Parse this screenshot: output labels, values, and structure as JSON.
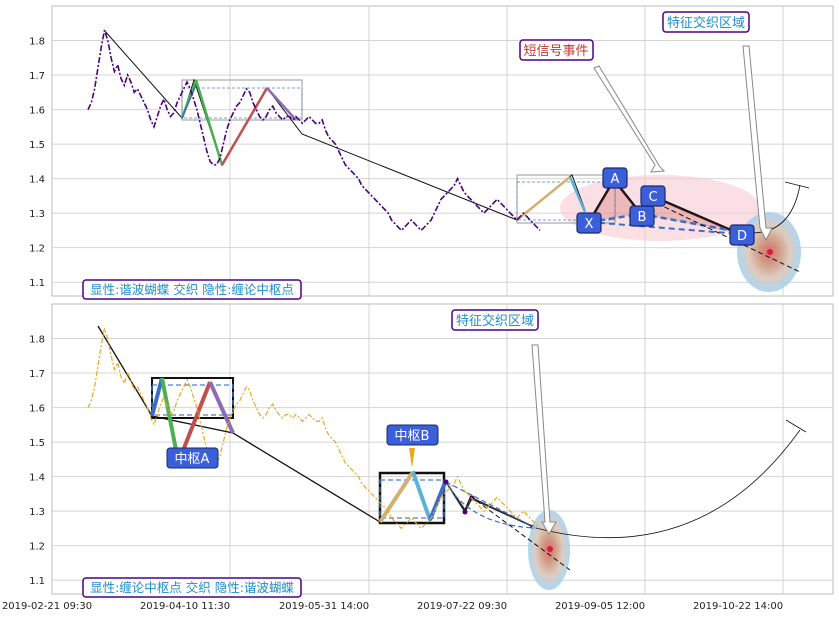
{
  "chart_data": [
    {
      "type": "line",
      "panel": "top",
      "ylim": [
        1.06,
        1.9
      ],
      "yticks": [
        1.1,
        1.2,
        1.3,
        1.4,
        1.5,
        1.6,
        1.7,
        1.8
      ],
      "ytick_labels": [
        "1.1",
        "1.2",
        "1.3",
        "1.4",
        "1.5",
        "1.6",
        "1.7",
        "1.8"
      ],
      "series_color": "#4b0082",
      "series": [
        {
          "values": [
            1.6,
            1.62,
            1.66,
            1.72,
            1.78,
            1.83,
            1.8,
            1.75,
            1.71,
            1.73,
            1.69,
            1.67,
            1.7,
            1.68,
            1.65,
            1.66,
            1.64,
            1.62,
            1.6,
            1.57,
            1.55,
            1.58,
            1.61,
            1.63,
            1.6,
            1.58,
            1.59,
            1.62,
            1.64,
            1.66,
            1.68,
            1.66,
            1.63,
            1.6,
            1.56,
            1.52,
            1.48,
            1.45,
            1.44,
            1.44,
            1.46,
            1.5,
            1.54,
            1.57,
            1.59,
            1.61,
            1.62,
            1.64,
            1.66,
            1.65,
            1.62,
            1.6,
            1.58,
            1.57,
            1.58,
            1.6,
            1.61,
            1.59,
            1.58,
            1.57,
            1.58,
            1.58,
            1.57,
            1.58,
            1.57,
            1.56,
            1.57,
            1.58,
            1.57,
            1.56,
            1.56,
            1.57,
            1.54,
            1.52,
            1.51,
            1.5,
            1.48,
            1.46,
            1.44,
            1.43,
            1.42,
            1.41,
            1.4,
            1.38,
            1.37,
            1.36,
            1.35,
            1.34,
            1.33,
            1.32,
            1.31,
            1.3,
            1.28,
            1.27,
            1.26,
            1.25,
            1.26,
            1.27,
            1.28,
            1.27,
            1.26,
            1.25,
            1.26,
            1.27,
            1.28,
            1.3,
            1.32,
            1.34,
            1.35,
            1.36,
            1.37,
            1.38,
            1.4,
            1.38,
            1.36,
            1.35,
            1.34,
            1.33,
            1.32,
            1.31,
            1.3,
            1.31,
            1.32,
            1.33,
            1.34,
            1.33,
            1.32,
            1.31,
            1.3,
            1.29,
            1.28,
            1.29,
            1.3,
            1.29,
            1.28,
            1.27,
            1.26,
            1.25
          ]
        }
      ],
      "annotations": {
        "legend_text": "显性:谐波蝴蝶 交织 隐性:缠论中枢点",
        "signal_label": "短信号事件",
        "zone_label": "特征交织区域",
        "pattern_points": [
          "X",
          "A",
          "B",
          "C",
          "D"
        ]
      }
    },
    {
      "type": "line",
      "panel": "bottom",
      "ylim": [
        1.06,
        1.9
      ],
      "yticks": [
        1.1,
        1.2,
        1.3,
        1.4,
        1.5,
        1.6,
        1.7,
        1.8
      ],
      "ytick_labels": [
        "1.1",
        "1.2",
        "1.3",
        "1.4",
        "1.5",
        "1.6",
        "1.7",
        "1.8"
      ],
      "series_color": "#e8a820",
      "series": [
        {
          "values": [
            1.6,
            1.62,
            1.66,
            1.72,
            1.78,
            1.83,
            1.8,
            1.75,
            1.71,
            1.73,
            1.69,
            1.67,
            1.7,
            1.68,
            1.65,
            1.66,
            1.64,
            1.62,
            1.6,
            1.57,
            1.55,
            1.58,
            1.61,
            1.63,
            1.6,
            1.58,
            1.59,
            1.62,
            1.64,
            1.66,
            1.68,
            1.66,
            1.63,
            1.6,
            1.56,
            1.52,
            1.48,
            1.45,
            1.44,
            1.44,
            1.46,
            1.5,
            1.54,
            1.57,
            1.59,
            1.61,
            1.62,
            1.64,
            1.66,
            1.65,
            1.62,
            1.6,
            1.58,
            1.57,
            1.58,
            1.6,
            1.61,
            1.59,
            1.58,
            1.57,
            1.58,
            1.58,
            1.57,
            1.58,
            1.57,
            1.56,
            1.57,
            1.58,
            1.57,
            1.56,
            1.56,
            1.57,
            1.54,
            1.52,
            1.51,
            1.5,
            1.48,
            1.46,
            1.44,
            1.43,
            1.42,
            1.41,
            1.4,
            1.38,
            1.37,
            1.36,
            1.35,
            1.34,
            1.33,
            1.32,
            1.31,
            1.3,
            1.28,
            1.27,
            1.26,
            1.25,
            1.26,
            1.27,
            1.28,
            1.27,
            1.26,
            1.25,
            1.26,
            1.27,
            1.28,
            1.3,
            1.32,
            1.34,
            1.35,
            1.36,
            1.37,
            1.38,
            1.4,
            1.38,
            1.36,
            1.35,
            1.34,
            1.33,
            1.32,
            1.31,
            1.3,
            1.31,
            1.32,
            1.33,
            1.34,
            1.33,
            1.32,
            1.31,
            1.3,
            1.29,
            1.28,
            1.29,
            1.3,
            1.29,
            1.28,
            1.27,
            1.26,
            1.25
          ]
        }
      ],
      "annotations": {
        "legend_text": "显性:缠论中枢点 交织 隐性:谐波蝴蝶",
        "zone_label": "特征交织区域",
        "hub_a_label": "中枢A",
        "hub_b_label": "中枢B"
      }
    }
  ],
  "x_axis": {
    "tick_labels": [
      "2019-02-21 09:30",
      "2019-04-10 11:30",
      "2019-05-31 14:00",
      "2019-07-22 09:30",
      "2019-09-05 12:00",
      "2019-10-22 14:00"
    ]
  },
  "colors": {
    "label_box_border": "#4b0082",
    "label_text_blue": "#1e90c8",
    "label_text_red": "#c0392b",
    "point_fill": "#3b5fd9",
    "grid": "#d0d0d0"
  }
}
